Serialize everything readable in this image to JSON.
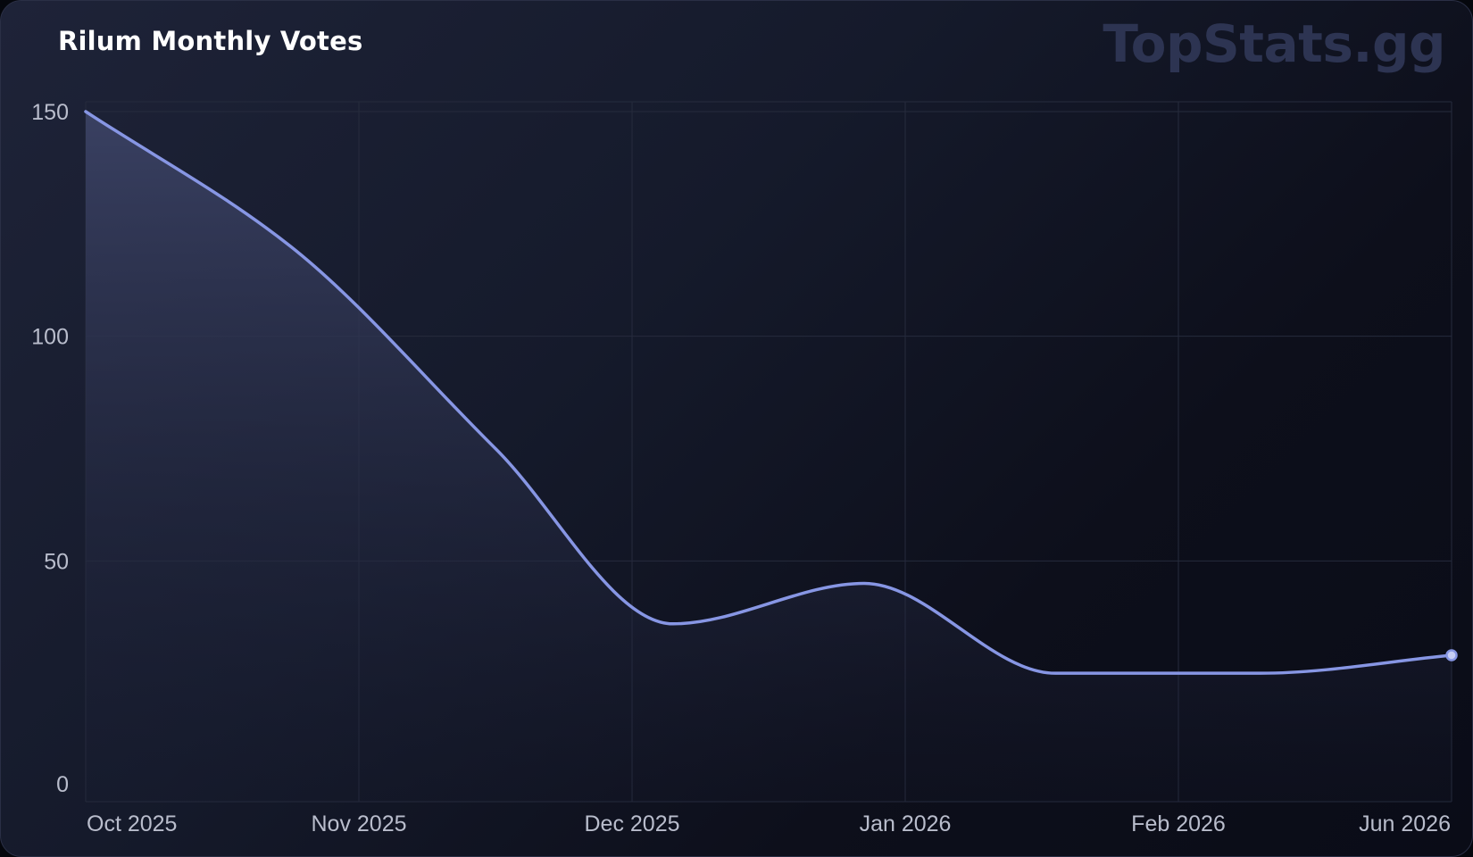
{
  "title": "Rilum Monthly Votes",
  "watermark": "TopStats.gg",
  "colors": {
    "line": "#8796e4",
    "area_top": "#3b4264",
    "grid": "#262b3d",
    "tick": "#b9bdcc"
  },
  "chart_data": {
    "type": "area",
    "title": "Rilum Monthly Votes",
    "xlabel": "",
    "ylabel": "",
    "x_ticks": [
      "Oct 2025",
      "Nov 2025",
      "Dec 2025",
      "Jan 2026",
      "Feb 2026",
      "Jun 2026"
    ],
    "y_ticks": [
      0,
      50,
      100,
      150
    ],
    "ylim": [
      0,
      150
    ],
    "grid": true,
    "series": [
      {
        "points": [
          {
            "x": 0,
            "y": 150
          },
          {
            "x": 0.75,
            "y": 120
          },
          {
            "x": 1.5,
            "y": 75
          },
          {
            "x": 2.15,
            "y": 36
          },
          {
            "x": 2.85,
            "y": 45
          },
          {
            "x": 3.55,
            "y": 25
          },
          {
            "x": 4.3,
            "y": 25
          },
          {
            "x": 5,
            "y": 29
          }
        ]
      }
    ]
  }
}
